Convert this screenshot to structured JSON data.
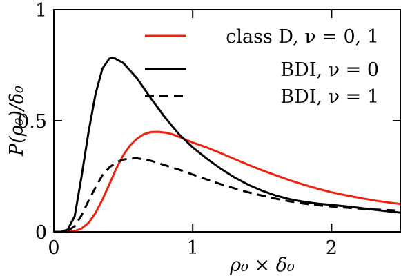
{
  "chart_data": {
    "type": "line",
    "title": "",
    "xlabel": "ρ₀ × δ₀",
    "ylabel": "P(ρ₀)/δ₀",
    "xlim": [
      0,
      2.5
    ],
    "ylim": [
      0,
      1
    ],
    "x_ticks": [
      {
        "value": 0,
        "label": "0"
      },
      {
        "value": 1,
        "label": "1"
      },
      {
        "value": 2,
        "label": "2"
      }
    ],
    "y_ticks": [
      {
        "value": 0,
        "label": "0"
      },
      {
        "value": 0.5,
        "label": "0.5"
      },
      {
        "value": 1,
        "label": "1"
      }
    ],
    "legend_position": "top-right",
    "grid": false,
    "series": [
      {
        "name": "class D, ν = 0, 1",
        "color": "#ee2211",
        "dash": "solid",
        "points": [
          [
            0,
            0
          ],
          [
            0.1,
            0
          ],
          [
            0.15,
            0.003
          ],
          [
            0.2,
            0.015
          ],
          [
            0.25,
            0.04
          ],
          [
            0.3,
            0.085
          ],
          [
            0.35,
            0.145
          ],
          [
            0.4,
            0.215
          ],
          [
            0.45,
            0.285
          ],
          [
            0.5,
            0.345
          ],
          [
            0.55,
            0.39
          ],
          [
            0.6,
            0.42
          ],
          [
            0.65,
            0.44
          ],
          [
            0.7,
            0.449
          ],
          [
            0.75,
            0.45
          ],
          [
            0.8,
            0.447
          ],
          [
            0.85,
            0.44
          ],
          [
            0.9,
            0.428
          ],
          [
            0.95,
            0.415
          ],
          [
            1.0,
            0.402
          ],
          [
            1.1,
            0.38
          ],
          [
            1.2,
            0.355
          ],
          [
            1.3,
            0.328
          ],
          [
            1.4,
            0.302
          ],
          [
            1.5,
            0.277
          ],
          [
            1.6,
            0.254
          ],
          [
            1.7,
            0.232
          ],
          [
            1.8,
            0.212
          ],
          [
            1.9,
            0.194
          ],
          [
            2.0,
            0.178
          ],
          [
            2.1,
            0.165
          ],
          [
            2.2,
            0.153
          ],
          [
            2.3,
            0.142
          ],
          [
            2.4,
            0.133
          ],
          [
            2.5,
            0.125
          ]
        ]
      },
      {
        "name": "BDI, ν = 0",
        "color": "#000000",
        "dash": "solid",
        "points": [
          [
            0,
            0
          ],
          [
            0.05,
            0
          ],
          [
            0.1,
            0.01
          ],
          [
            0.15,
            0.07
          ],
          [
            0.2,
            0.25
          ],
          [
            0.25,
            0.45
          ],
          [
            0.3,
            0.62
          ],
          [
            0.35,
            0.735
          ],
          [
            0.4,
            0.78
          ],
          [
            0.43,
            0.784
          ],
          [
            0.5,
            0.76
          ],
          [
            0.6,
            0.69
          ],
          [
            0.7,
            0.6
          ],
          [
            0.8,
            0.515
          ],
          [
            0.9,
            0.44
          ],
          [
            1.0,
            0.38
          ],
          [
            1.1,
            0.33
          ],
          [
            1.2,
            0.285
          ],
          [
            1.3,
            0.245
          ],
          [
            1.4,
            0.212
          ],
          [
            1.5,
            0.185
          ],
          [
            1.6,
            0.163
          ],
          [
            1.7,
            0.147
          ],
          [
            1.8,
            0.135
          ],
          [
            1.9,
            0.127
          ],
          [
            2.0,
            0.121
          ],
          [
            2.1,
            0.115
          ],
          [
            2.2,
            0.108
          ],
          [
            2.3,
            0.1
          ],
          [
            2.4,
            0.093
          ],
          [
            2.5,
            0.086
          ]
        ]
      },
      {
        "name": "BDI, ν = 1",
        "color": "#000000",
        "dash": "dashed",
        "points": [
          [
            0,
            0
          ],
          [
            0.05,
            0
          ],
          [
            0.1,
            0.004
          ],
          [
            0.15,
            0.025
          ],
          [
            0.2,
            0.075
          ],
          [
            0.25,
            0.14
          ],
          [
            0.3,
            0.2
          ],
          [
            0.35,
            0.255
          ],
          [
            0.4,
            0.29
          ],
          [
            0.45,
            0.313
          ],
          [
            0.5,
            0.325
          ],
          [
            0.55,
            0.33
          ],
          [
            0.6,
            0.331
          ],
          [
            0.7,
            0.32
          ],
          [
            0.8,
            0.3
          ],
          [
            0.9,
            0.28
          ],
          [
            1.0,
            0.258
          ],
          [
            1.1,
            0.236
          ],
          [
            1.2,
            0.215
          ],
          [
            1.3,
            0.196
          ],
          [
            1.4,
            0.178
          ],
          [
            1.5,
            0.163
          ],
          [
            1.6,
            0.149
          ],
          [
            1.7,
            0.137
          ],
          [
            1.8,
            0.127
          ],
          [
            1.9,
            0.12
          ],
          [
            2.0,
            0.114
          ],
          [
            2.1,
            0.109
          ],
          [
            2.2,
            0.105
          ],
          [
            2.3,
            0.101
          ],
          [
            2.4,
            0.098
          ],
          [
            2.5,
            0.095
          ]
        ]
      }
    ]
  }
}
